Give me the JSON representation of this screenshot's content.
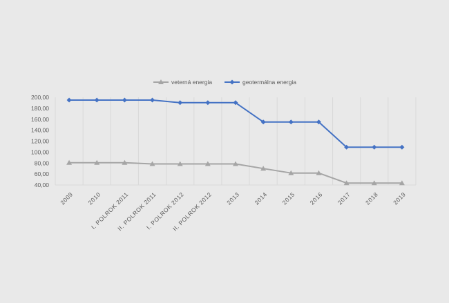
{
  "chart_data": {
    "type": "line",
    "title": "",
    "xlabel": "",
    "ylabel": "",
    "categories": [
      "2009",
      "2010",
      "I. POLROK 2011",
      "II. POLROK 2011",
      "I. POLROK 2012",
      "II. POLROK 2012",
      "2013",
      "2014",
      "2015",
      "2016",
      "2017",
      "2018",
      "2019"
    ],
    "series": [
      {
        "name": "veterná energia",
        "color": "#a5a5a5",
        "marker": "triangle",
        "values": [
          80.6,
          80.6,
          80.6,
          78.4,
          78.4,
          78.4,
          78.4,
          70.0,
          61.8,
          61.8,
          43.5,
          43.5,
          43.5
        ]
      },
      {
        "name": "geotermálna energia",
        "color": "#4472c4",
        "marker": "diamond",
        "values": [
          195.0,
          195.0,
          195.0,
          195.0,
          190.2,
          190.2,
          190.2,
          155.0,
          155.0,
          155.0,
          109.0,
          109.0,
          109.0
        ]
      }
    ],
    "ylim": [
      40,
      200
    ],
    "yticks": [
      40,
      60,
      80,
      100,
      120,
      140,
      160,
      180,
      200
    ],
    "ytick_labels": [
      "40,00",
      "60,00",
      "80,00",
      "100,00",
      "120,00",
      "140,00",
      "160,00",
      "180,00",
      "200,00"
    ],
    "grid": "vertical",
    "legend": "top"
  }
}
